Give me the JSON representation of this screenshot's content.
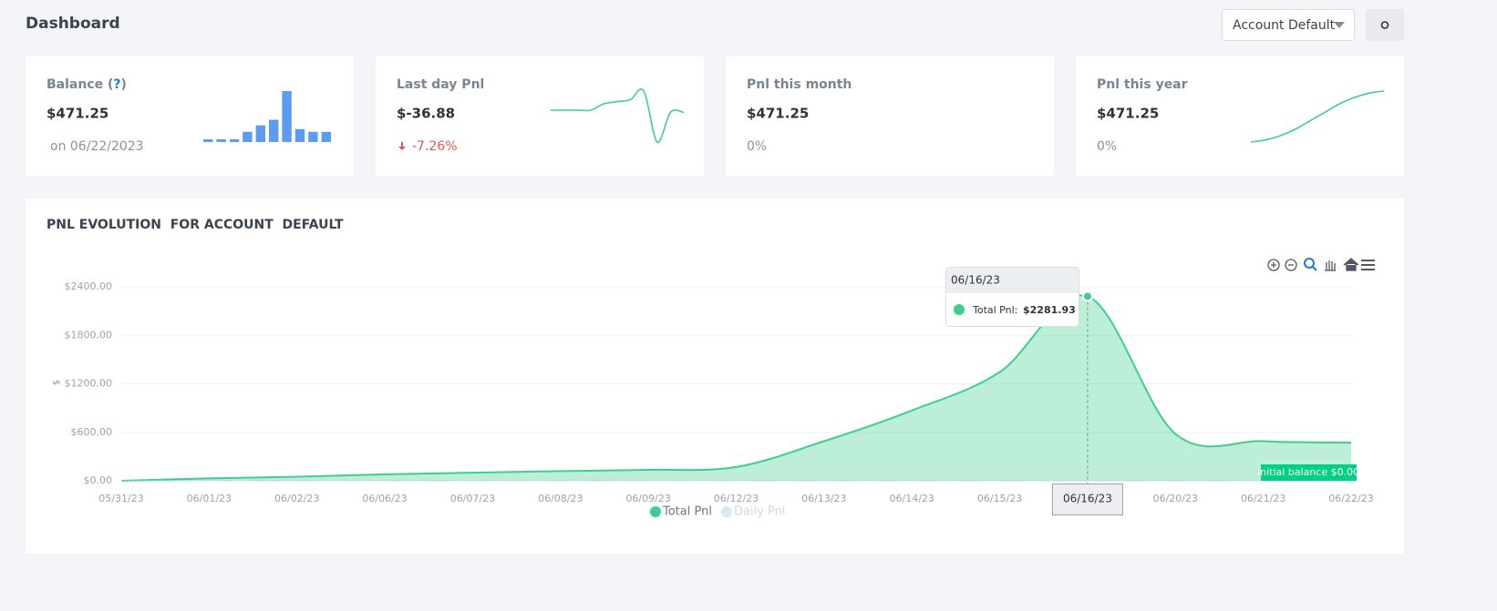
{
  "header": {
    "title": "Dashboard",
    "account_select": "Account Default"
  },
  "cards": [
    {
      "title_parts": [
        "Balance (",
        "?",
        ")"
      ],
      "value": "$471.25",
      "sub": "on 06/22/2023",
      "spark": {
        "type": "bar",
        "values": [
          3,
          3,
          3,
          11,
          18,
          24,
          55,
          14,
          11,
          11
        ]
      }
    },
    {
      "title_parts": [
        "Last day Pnl"
      ],
      "value": "$-36.88",
      "sub": "-7.26%",
      "trend": "down",
      "spark": {
        "type": "line",
        "values": [
          0,
          0,
          0,
          0,
          3,
          4,
          5,
          9,
          -15,
          -1,
          -1
        ]
      }
    },
    {
      "title_parts": [
        "Pnl this month"
      ],
      "value": "$471.25",
      "sub": "0%"
    },
    {
      "title_parts": [
        "Pnl this year"
      ],
      "value": "$471.25",
      "sub": "0%",
      "spark": {
        "type": "line",
        "values": [
          0,
          1,
          3,
          6,
          10,
          14,
          18,
          21,
          23,
          24
        ]
      }
    }
  ],
  "chart_data": {
    "type": "area",
    "title": "PNL EVOLUTION  FOR ACCOUNT  DEFAULT",
    "y_label": "$",
    "categories": [
      "05/31/23",
      "06/01/23",
      "06/02/23",
      "06/06/23",
      "06/07/23",
      "06/08/23",
      "06/09/23",
      "06/12/23",
      "06/13/23",
      "06/14/23",
      "06/15/23",
      "06/16/23",
      "06/20/23",
      "06/21/23",
      "06/22/23"
    ],
    "series": [
      {
        "name": "Total Pnl",
        "color": "#3ecf8e",
        "values": [
          0,
          30,
          50,
          80,
          100,
          120,
          135,
          170,
          490,
          870,
          1345,
          2281.93,
          580,
          490,
          471.25
        ]
      },
      {
        "name": "Daily Pnl",
        "color": "#d6e9f5",
        "hidden": true,
        "values": [
          null,
          null,
          null,
          null,
          null,
          null,
          null,
          null,
          null,
          null,
          null,
          null,
          null,
          null,
          null
        ]
      }
    ],
    "ylim": [
      0,
      2400
    ],
    "yticks": [
      {
        "value": 0,
        "label": "$0.00"
      },
      {
        "value": 600,
        "label": "$600.00"
      },
      {
        "value": 1200,
        "label": "$1200.00"
      },
      {
        "value": 1800,
        "label": "$1800.00"
      },
      {
        "value": 2400,
        "label": "$2400.00"
      }
    ],
    "grid": true,
    "tooltip": {
      "index": 11,
      "title": "06/16/23",
      "series_label": "Total Pnl:",
      "value_label": "$2281.93"
    },
    "annotation": "Initial balance $0.00"
  }
}
